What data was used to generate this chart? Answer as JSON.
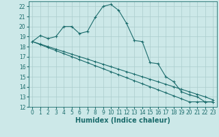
{
  "xlabel": "Humidex (Indice chaleur)",
  "xlim": [
    -0.5,
    23.5
  ],
  "ylim": [
    12,
    22.5
  ],
  "background_color": "#cce8e8",
  "grid_color": "#aacccc",
  "line_color": "#1a6b6b",
  "line1": {
    "x": [
      0,
      1,
      2,
      3,
      4,
      5,
      6,
      7,
      8,
      9,
      10,
      11,
      12,
      13,
      14,
      15,
      16,
      17,
      18,
      19,
      20,
      21,
      22,
      23
    ],
    "y": [
      18.5,
      19.1,
      18.8,
      19.0,
      20.0,
      20.0,
      19.3,
      19.5,
      20.9,
      22.0,
      22.2,
      21.6,
      20.3,
      18.6,
      18.5,
      16.4,
      16.3,
      15.0,
      14.5,
      13.5,
      13.2,
      13.0,
      12.5,
      12.5
    ]
  },
  "line2": {
    "x": [
      0,
      1,
      2,
      3,
      4,
      5,
      6,
      7,
      8,
      9,
      10,
      11,
      12,
      13,
      14,
      15,
      16,
      17,
      18,
      19,
      20,
      21,
      22,
      23
    ],
    "y": [
      18.5,
      18.25,
      18.0,
      17.75,
      17.5,
      17.25,
      17.0,
      16.75,
      16.5,
      16.25,
      16.0,
      15.75,
      15.5,
      15.25,
      15.0,
      14.75,
      14.5,
      14.25,
      14.0,
      13.75,
      13.5,
      13.25,
      13.0,
      12.7
    ]
  },
  "line3": {
    "x": [
      0,
      1,
      2,
      3,
      4,
      5,
      6,
      7,
      8,
      9,
      10,
      11,
      12,
      13,
      14,
      15,
      16,
      17,
      18,
      19,
      20,
      21,
      22,
      23
    ],
    "y": [
      18.5,
      18.2,
      17.9,
      17.6,
      17.3,
      17.0,
      16.7,
      16.4,
      16.1,
      15.8,
      15.5,
      15.2,
      14.9,
      14.6,
      14.3,
      14.0,
      13.7,
      13.4,
      13.1,
      12.8,
      12.5,
      12.5,
      12.5,
      12.5
    ]
  },
  "xticks": [
    0,
    1,
    2,
    3,
    4,
    5,
    6,
    7,
    8,
    9,
    10,
    11,
    12,
    13,
    14,
    15,
    16,
    17,
    18,
    19,
    20,
    21,
    22,
    23
  ],
  "yticks": [
    12,
    13,
    14,
    15,
    16,
    17,
    18,
    19,
    20,
    21,
    22
  ],
  "tick_fontsize": 5.5,
  "label_fontsize": 7
}
